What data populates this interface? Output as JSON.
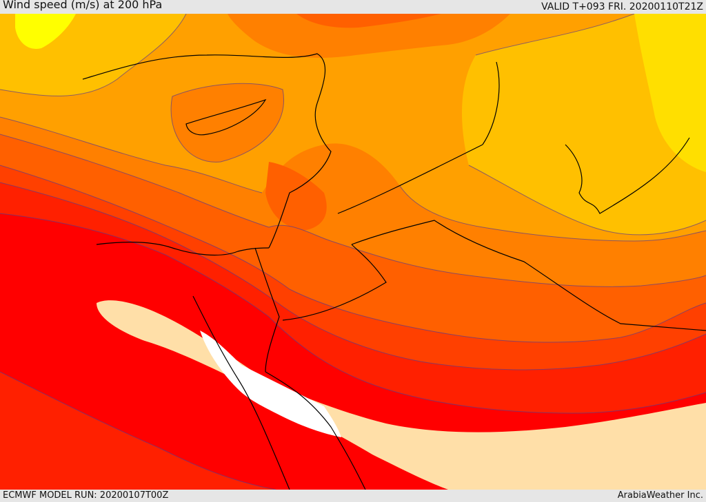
{
  "header": {
    "title": "Wind speed (m/s) at 200 hPa",
    "valid": "VALID T+093 FRI. 20200110T21Z"
  },
  "footer": {
    "model_run": "ECMWF MODEL RUN: 20200107T00Z",
    "credit": "ArabiaWeather Inc."
  },
  "colors": {
    "band_1": "#ffff00",
    "band_2": "#ffdf00",
    "band_3": "#ffc000",
    "band_4": "#ffa000",
    "band_5": "#ff8000",
    "band_6": "#ff6000",
    "band_7": "#ff4000",
    "band_8": "#ff2000",
    "band_9": "#ff0000",
    "band_10": "#ffdfa8",
    "band_11": "#ffffff",
    "contour": "#5a3a8a",
    "border": "#000000"
  }
}
